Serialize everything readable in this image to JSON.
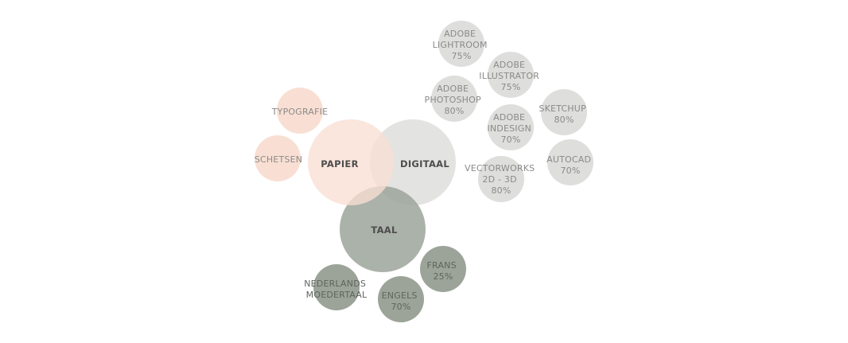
{
  "colors": {
    "papier": "#f9dfd3",
    "digitaal": "#dededc",
    "taal": "#9ca49a",
    "text_light": "#8a8a8a",
    "text_dark": "#4d4d4d"
  },
  "diagram": {
    "papier": {
      "title": "PAPIER",
      "skills": [
        {
          "lines": [
            "TYPOGRAFIE"
          ]
        },
        {
          "lines": [
            "SCHETSEN"
          ]
        }
      ]
    },
    "digitaal": {
      "title": "DIGITAAL",
      "skills": [
        {
          "lines": [
            "ADOBE",
            "LIGHTROOM",
            "75%"
          ]
        },
        {
          "lines": [
            "ADOBE",
            "ILLUSTRATOR",
            "75%"
          ]
        },
        {
          "lines": [
            "ADOBE",
            "PHOTOSHOP",
            "80%"
          ]
        },
        {
          "lines": [
            "SKETCHUP",
            "80%"
          ]
        },
        {
          "lines": [
            "ADOBE",
            "INDESIGN",
            "70%"
          ]
        },
        {
          "lines": [
            "AUTOCAD",
            "70%"
          ]
        },
        {
          "lines": [
            "VECTORWORKS",
            "2D - 3D",
            "80%"
          ]
        }
      ]
    },
    "taal": {
      "title": "TAAL",
      "skills": [
        {
          "lines": [
            "FRANS",
            "25%"
          ]
        },
        {
          "lines": [
            "NEDERLANDS",
            "MOEDERTAAL"
          ]
        },
        {
          "lines": [
            "ENGELS",
            "70%"
          ]
        }
      ]
    }
  }
}
